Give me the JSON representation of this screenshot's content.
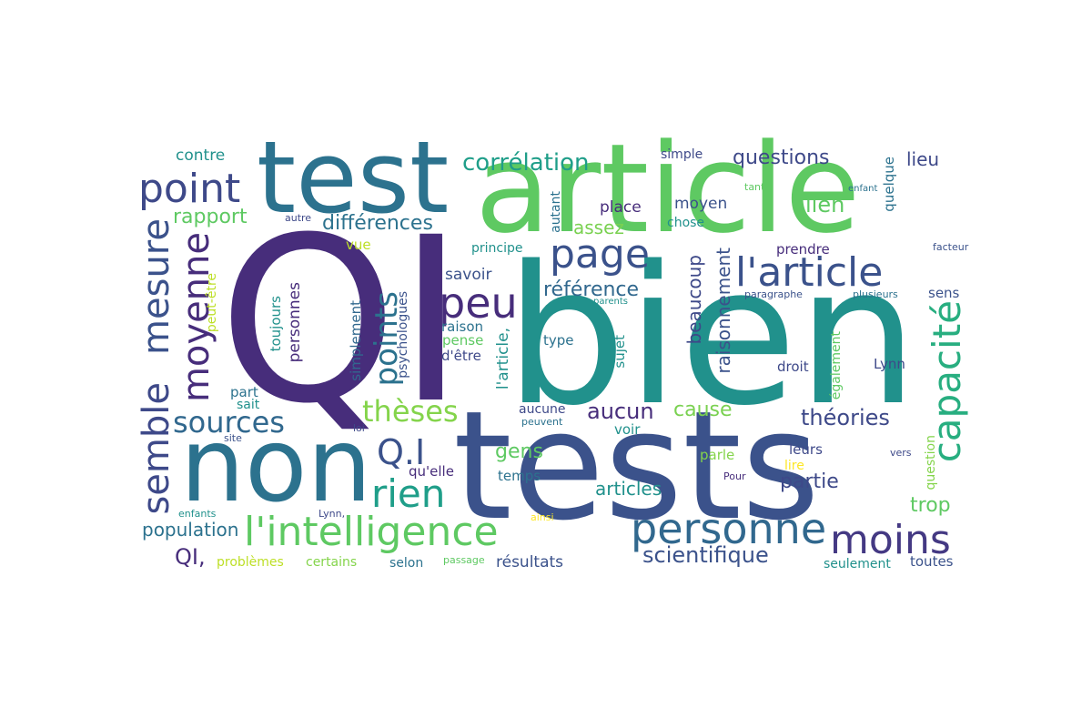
{
  "words": [
    {
      "text": "QI",
      "color": "#472d7b"
    },
    {
      "text": "bien",
      "color": "#21918c"
    },
    {
      "text": "tests",
      "color": "#3b528b"
    },
    {
      "text": "article",
      "color": "#5ec962"
    },
    {
      "text": "test",
      "color": "#2c728e"
    },
    {
      "text": "non",
      "color": "#2c728e"
    },
    {
      "text": "l'intelligence",
      "color": "#5ec962"
    },
    {
      "text": "personne",
      "color": "#31688e"
    },
    {
      "text": "l'article",
      "color": "#3b528b"
    },
    {
      "text": "moins",
      "color": "#443983"
    },
    {
      "text": "capacité",
      "color": "#28ae80"
    },
    {
      "text": "semble",
      "color": "#3e4989"
    },
    {
      "text": "mesure",
      "color": "#3b528b"
    },
    {
      "text": "moyenne",
      "color": "#472d7b"
    },
    {
      "text": "page",
      "color": "#3b528b"
    },
    {
      "text": "peu",
      "color": "#472d7b"
    },
    {
      "text": "point",
      "color": "#3e4989"
    },
    {
      "text": "rien",
      "color": "#1f9e89"
    },
    {
      "text": "Q.I",
      "color": "#3b528b"
    },
    {
      "text": "sources",
      "color": "#31688e"
    },
    {
      "text": "points",
      "color": "#2c728e"
    },
    {
      "text": "thèses",
      "color": "#84d44b"
    },
    {
      "text": "corrélation",
      "color": "#1f9e89"
    },
    {
      "text": "différences",
      "color": "#2c728e"
    },
    {
      "text": "questions",
      "color": "#3e4989"
    },
    {
      "text": "théories",
      "color": "#3e4989"
    },
    {
      "text": "scientifique",
      "color": "#3b528b"
    },
    {
      "text": "aucun",
      "color": "#472d7b"
    },
    {
      "text": "rapport",
      "color": "#5ec962"
    },
    {
      "text": "référence",
      "color": "#31688e"
    },
    {
      "text": "lien",
      "color": "#5ec962"
    },
    {
      "text": "lieu",
      "color": "#3e4989"
    },
    {
      "text": "population",
      "color": "#2c728e"
    },
    {
      "text": "articles",
      "color": "#21918c"
    },
    {
      "text": "partie",
      "color": "#3e4989"
    },
    {
      "text": "trop",
      "color": "#5ec962"
    },
    {
      "text": "cause",
      "color": "#7ad151"
    },
    {
      "text": "gens",
      "color": "#5ec962"
    },
    {
      "text": "QI,",
      "color": "#472d7b"
    },
    {
      "text": "beaucoup",
      "color": "#3e4989"
    },
    {
      "text": "raisonnement",
      "color": "#3b528b"
    },
    {
      "text": "assez",
      "color": "#7ad151"
    },
    {
      "text": "contre",
      "color": "#21918c"
    },
    {
      "text": "savoir",
      "color": "#3b528b"
    },
    {
      "text": "simple",
      "color": "#3e4989"
    },
    {
      "text": "moyen",
      "color": "#3b528b"
    },
    {
      "text": "place",
      "color": "#472d7b"
    },
    {
      "text": "chose",
      "color": "#21918c"
    },
    {
      "text": "autant",
      "color": "#2c728e"
    },
    {
      "text": "principe",
      "color": "#21918c"
    },
    {
      "text": "prendre",
      "color": "#472d7b"
    },
    {
      "text": "vue",
      "color": "#bddf26"
    },
    {
      "text": "personnes",
      "color": "#472d7b"
    },
    {
      "text": "toujours",
      "color": "#21918c"
    },
    {
      "text": "simplement",
      "color": "#31688e"
    },
    {
      "text": "psychologues",
      "color": "#3b528b"
    },
    {
      "text": "l'article,",
      "color": "#21918c"
    },
    {
      "text": "pense",
      "color": "#5ec962"
    },
    {
      "text": "raison",
      "color": "#2c728e"
    },
    {
      "text": "d'être",
      "color": "#3e4989"
    },
    {
      "text": "type",
      "color": "#2c728e"
    },
    {
      "text": "sujet",
      "color": "#21918c"
    },
    {
      "text": "droit",
      "color": "#3e4989"
    },
    {
      "text": "Lynn",
      "color": "#3e4989"
    },
    {
      "text": "également",
      "color": "#5ec962"
    },
    {
      "text": "sens",
      "color": "#3b528b"
    },
    {
      "text": "quelque",
      "color": "#2c728e"
    },
    {
      "text": "question",
      "color": "#84d44b"
    },
    {
      "text": "leurs",
      "color": "#3e4989"
    },
    {
      "text": "lire",
      "color": "#fde725"
    },
    {
      "text": "parle",
      "color": "#84d44b"
    },
    {
      "text": "temps",
      "color": "#2c728e"
    },
    {
      "text": "qu'elle",
      "color": "#472d7b"
    },
    {
      "text": "voir",
      "color": "#21918c"
    },
    {
      "text": "aucune",
      "color": "#3e4989"
    },
    {
      "text": "peuvent",
      "color": "#2c728e"
    },
    {
      "text": "part",
      "color": "#2c728e"
    },
    {
      "text": "sait",
      "color": "#21918c"
    },
    {
      "text": "loi",
      "color": "#3e4989"
    },
    {
      "text": "site",
      "color": "#3b528b"
    },
    {
      "text": "peut-être",
      "color": "#bddf26"
    },
    {
      "text": "autre",
      "color": "#3e4989"
    },
    {
      "text": "problèmes",
      "color": "#bddf26"
    },
    {
      "text": "certains",
      "color": "#84d44b"
    },
    {
      "text": "selon",
      "color": "#2c728e"
    },
    {
      "text": "passage",
      "color": "#5ec962"
    },
    {
      "text": "résultats",
      "color": "#3b528b"
    },
    {
      "text": "seulement",
      "color": "#21918c"
    },
    {
      "text": "toutes",
      "color": "#3b528b"
    },
    {
      "text": "enfants",
      "color": "#21918c"
    },
    {
      "text": "Lynn,",
      "color": "#3e4989"
    },
    {
      "text": "ainsi",
      "color": "#fde725"
    },
    {
      "text": "Pour",
      "color": "#472d7b"
    },
    {
      "text": "vers",
      "color": "#3e4989"
    },
    {
      "text": "facteur",
      "color": "#3b528b"
    },
    {
      "text": "plusieurs",
      "color": "#2c728e"
    },
    {
      "text": "paragraphe",
      "color": "#3b528b"
    },
    {
      "text": "parents",
      "color": "#21918c"
    },
    {
      "text": "enfant",
      "color": "#2c728e"
    },
    {
      "text": "tant",
      "color": "#5ec962"
    }
  ]
}
